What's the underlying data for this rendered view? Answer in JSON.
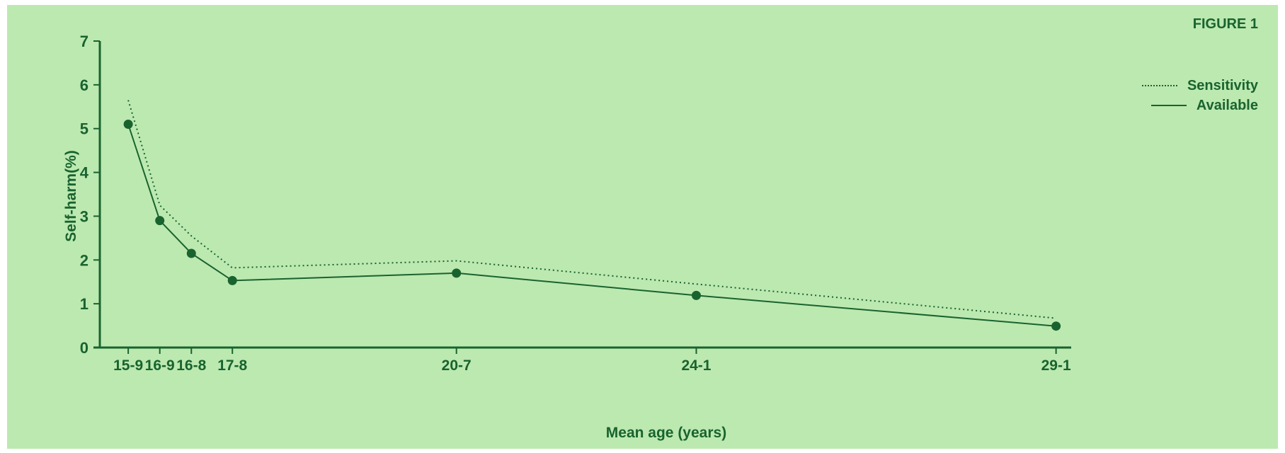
{
  "figure_label": "FIGURE 1",
  "colors": {
    "background": "#bce9b0",
    "line": "#19632f"
  },
  "chart_data": {
    "type": "line",
    "title": "",
    "xlabel": "Mean age (years)",
    "ylabel": "Self-harm(%)",
    "x_tick_labels": [
      "15-9",
      "16-9",
      "16-8",
      "17-8",
      "20-7",
      "24-1",
      "29-1"
    ],
    "x": [
      15.9,
      16.9,
      17.9,
      19.2,
      26.3,
      33.9,
      45.3
    ],
    "ylim": [
      0,
      7
    ],
    "yticks": [
      0,
      1,
      2,
      3,
      4,
      5,
      6,
      7
    ],
    "grid": false,
    "legend_position": "top-right",
    "series": [
      {
        "name": "Sensitivity",
        "style": "dotted",
        "markers": false,
        "values": [
          5.65,
          3.25,
          2.55,
          1.82,
          1.98,
          1.45,
          0.67
        ]
      },
      {
        "name": "Available",
        "style": "solid",
        "markers": true,
        "values": [
          5.1,
          2.9,
          2.15,
          1.53,
          1.7,
          1.19,
          0.49
        ]
      }
    ]
  }
}
